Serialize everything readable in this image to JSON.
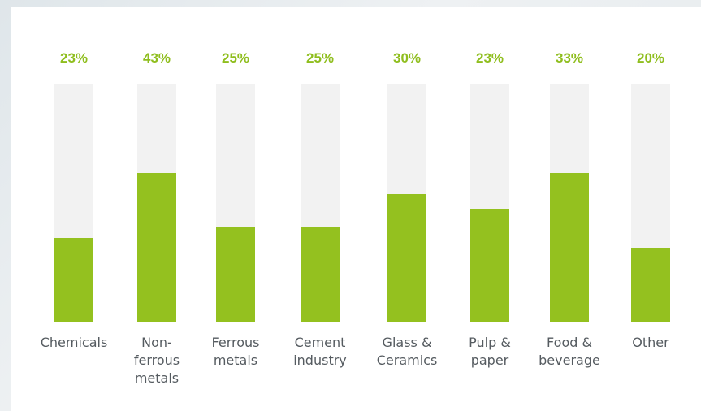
{
  "chart_data": {
    "type": "bar",
    "categories": [
      "Chemicals",
      "Non-\nferrous\nmetals",
      "Ferrous\nmetals",
      "Cement\nindustry",
      "Glass &\nCeramics",
      "Pulp &\npaper",
      "Food &\nbeverage",
      "Other"
    ],
    "values": [
      23,
      43,
      25,
      25,
      30,
      23,
      33,
      20
    ],
    "value_labels": [
      "23%",
      "43%",
      "25%",
      "25%",
      "30%",
      "23%",
      "33%",
      "20%"
    ],
    "fill_fraction": [
      0.35,
      0.625,
      0.395,
      0.395,
      0.535,
      0.473,
      0.625,
      0.31
    ],
    "title": "",
    "xlabel": "",
    "ylabel": "",
    "grid": false,
    "legend": "none",
    "colors": {
      "bar": "#94c11f",
      "track": "#f2f2f2",
      "label": "#8fbe1e",
      "category": "#555b60"
    }
  }
}
